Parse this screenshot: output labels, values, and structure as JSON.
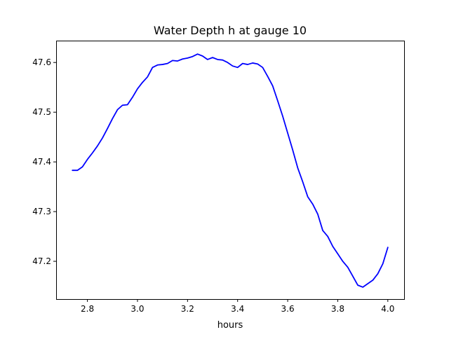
{
  "chart_data": {
    "type": "line",
    "title": "Water Depth h at gauge 10",
    "xlabel": "hours",
    "ylabel": "",
    "xlim": [
      2.675,
      4.065
    ],
    "ylim": [
      47.124,
      47.644
    ],
    "xticks": [
      2.8,
      3.0,
      3.2,
      3.4,
      3.6,
      3.8,
      4.0
    ],
    "xtick_labels": [
      "2.8",
      "3.0",
      "3.2",
      "3.4",
      "3.6",
      "3.8",
      "4.0"
    ],
    "yticks": [
      47.2,
      47.3,
      47.4,
      47.5,
      47.6
    ],
    "ytick_labels": [
      "47.2",
      "47.3",
      "47.4",
      "47.5",
      "47.6"
    ],
    "grid": false,
    "legend": "none",
    "series": [
      {
        "color": "#0000ff",
        "x": [
          2.74,
          2.76,
          2.78,
          2.8,
          2.82,
          2.84,
          2.86,
          2.88,
          2.9,
          2.92,
          2.94,
          2.96,
          2.98,
          3.0,
          3.02,
          3.04,
          3.06,
          3.08,
          3.1,
          3.12,
          3.14,
          3.16,
          3.18,
          3.2,
          3.22,
          3.24,
          3.26,
          3.28,
          3.3,
          3.32,
          3.34,
          3.36,
          3.38,
          3.4,
          3.42,
          3.44,
          3.46,
          3.48,
          3.5,
          3.52,
          3.54,
          3.56,
          3.58,
          3.6,
          3.62,
          3.64,
          3.66,
          3.68,
          3.7,
          3.72,
          3.74,
          3.76,
          3.78,
          3.8,
          3.82,
          3.84,
          3.86,
          3.88,
          3.9,
          3.92,
          3.94,
          3.96,
          3.98,
          4.0
        ],
        "y": [
          47.383,
          47.383,
          47.39,
          47.405,
          47.418,
          47.432,
          47.448,
          47.467,
          47.487,
          47.505,
          47.514,
          47.515,
          47.53,
          47.547,
          47.56,
          47.571,
          47.59,
          47.595,
          47.596,
          47.598,
          47.604,
          47.603,
          47.607,
          47.609,
          47.612,
          47.617,
          47.613,
          47.606,
          47.61,
          47.606,
          47.605,
          47.6,
          47.593,
          47.59,
          47.598,
          47.596,
          47.599,
          47.597,
          47.59,
          47.572,
          47.553,
          47.523,
          47.492,
          47.458,
          47.424,
          47.388,
          47.36,
          47.33,
          47.315,
          47.295,
          47.262,
          47.25,
          47.23,
          47.215,
          47.2,
          47.188,
          47.17,
          47.152,
          47.148,
          47.155,
          47.162,
          47.175,
          47.195,
          47.228
        ]
      }
    ]
  }
}
